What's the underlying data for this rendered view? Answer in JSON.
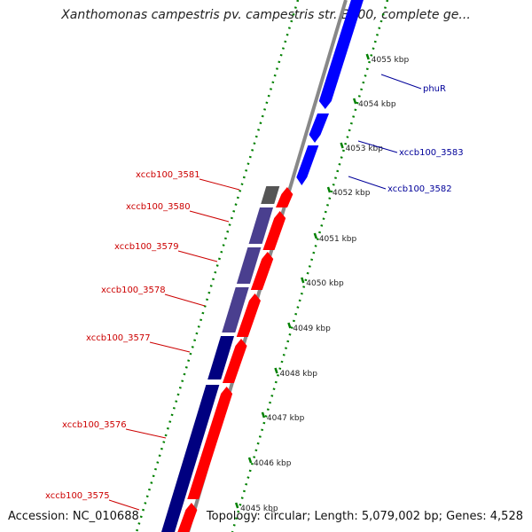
{
  "title": "Xanthomonas campestris pv. campestris str. B100, complete ge...",
  "footer": {
    "accession": "Accession: NC_010688",
    "topology": "Topology: circular; Length: 5,079,002 bp; Genes: 4,528"
  },
  "colors": {
    "backbone": "#888888",
    "forward_gene": "#0000ff",
    "reverse_gene": "#ff0000",
    "gc_dark": "#000080",
    "gc_mid": "#4a3f8f",
    "gray_gene": "#555555",
    "tick": "#008000",
    "red_label": "#cc0000",
    "blue_label": "#000099"
  },
  "ticks": [
    {
      "label": "4055 kbp"
    },
    {
      "label": "4054 kbp"
    },
    {
      "label": "4053 kbp"
    },
    {
      "label": "4052 kbp"
    },
    {
      "label": "4051 kbp"
    },
    {
      "label": "4050 kbp"
    },
    {
      "label": "4049 kbp"
    },
    {
      "label": "4048 kbp"
    },
    {
      "label": "4047 kbp"
    },
    {
      "label": "4046 kbp"
    },
    {
      "label": "4045 kbp"
    }
  ],
  "left_labels": [
    {
      "text": "xccb100_3581"
    },
    {
      "text": "xccb100_3580"
    },
    {
      "text": "xccb100_3579"
    },
    {
      "text": "xccb100_3578"
    },
    {
      "text": "xccb100_3577"
    },
    {
      "text": "xccb100_3576"
    },
    {
      "text": "xccb100_3575"
    }
  ],
  "right_labels": [
    {
      "text": "phuR"
    },
    {
      "text": "xccb100_3583"
    },
    {
      "text": "xccb100_3582"
    }
  ]
}
